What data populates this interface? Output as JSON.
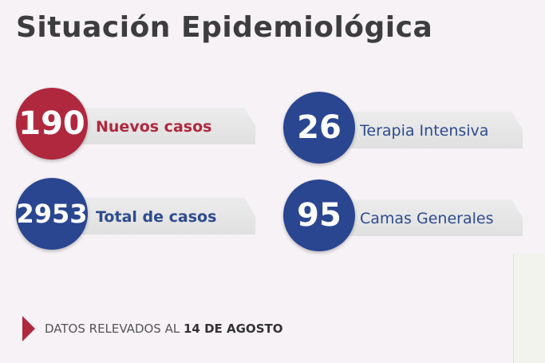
{
  "title": "Situación Epidemiológica",
  "colors": {
    "red": "#b0283e",
    "blue": "#2a4690",
    "blue_text": "#2d4b8f",
    "red_text": "#b0283e"
  },
  "stats": [
    {
      "value": "190",
      "label": "Nuevos casos"
    },
    {
      "value": "26",
      "label": "Terapia Intensiva"
    },
    {
      "value": "2953",
      "label": "Total de casos"
    },
    {
      "value": "95",
      "label": "Camas Generales"
    }
  ],
  "footer": {
    "prefix": "DATOS RELEVADOS AL",
    "date": "14 DE AGOSTO"
  }
}
